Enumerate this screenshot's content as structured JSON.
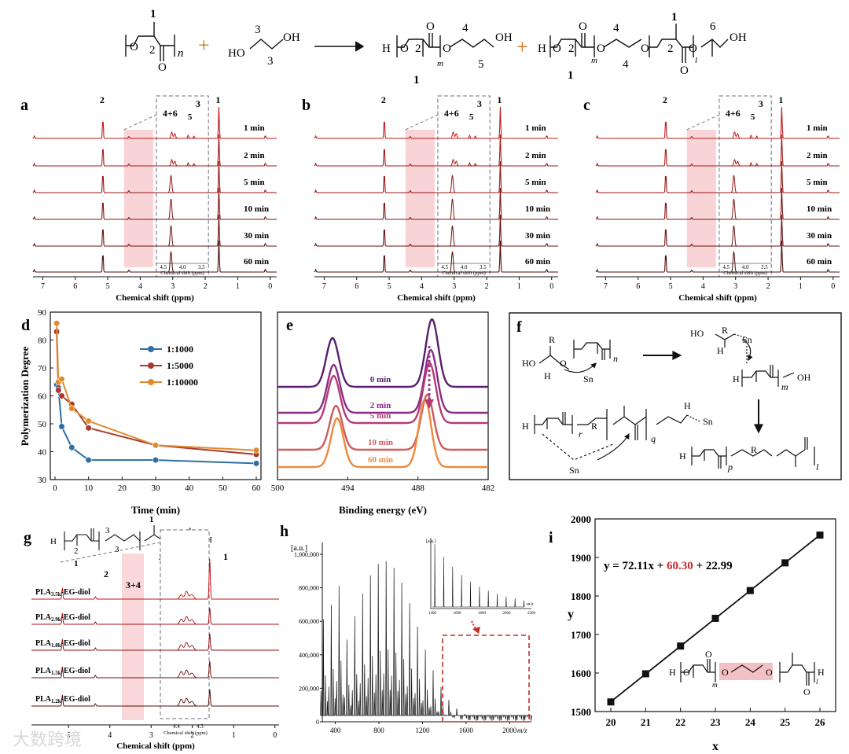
{
  "scheme": {
    "labels": {
      "n": "n",
      "m": "m",
      "l": "l",
      "H": "H",
      "HO": "HO",
      "OH": "OH",
      "plus": "+",
      "O": "O",
      "one": "1",
      "two": "2",
      "three": "3",
      "four": "4",
      "five": "5",
      "six": "6"
    }
  },
  "nmr_common": {
    "xlabel": "Chemical shift (ppm)",
    "xticks": [
      "7",
      "6",
      "5",
      "4",
      "3",
      "2",
      "1",
      "0"
    ],
    "inset_xlabel": "Chemical shift (ppm)",
    "inset_ticks": [
      "4.5",
      "4.0",
      "3.5"
    ],
    "times": [
      "1 min",
      "2 min",
      "5 min",
      "10 min",
      "30 min",
      "60 min"
    ]
  },
  "panels": [
    {
      "letter": "a",
      "inset_labels": [
        "4+6",
        "5",
        "3"
      ],
      "peak_labels": [
        "2",
        "1"
      ]
    },
    {
      "letter": "b",
      "inset_labels": [
        "4+6",
        "5",
        "3"
      ],
      "peak_labels": [
        "2",
        "1"
      ]
    },
    {
      "letter": "c",
      "inset_labels": [
        "4+6",
        "5",
        "3"
      ],
      "peak_labels": [
        "2",
        "1"
      ]
    }
  ],
  "panel_d": {
    "letter": "d",
    "chart_data": {
      "type": "line",
      "title": "",
      "xlabel": "Time (min)",
      "ylabel": "Polymerization Degree",
      "xlim": [
        0,
        60
      ],
      "ylim": [
        30,
        90
      ],
      "xticks": [
        "0",
        "10",
        "20",
        "30",
        "40",
        "50",
        "60"
      ],
      "yticks": [
        "30",
        "40",
        "50",
        "60",
        "70",
        "80",
        "90"
      ],
      "series": [
        {
          "name": "1:1000",
          "color": "#2f6fa3",
          "x": [
            0.5,
            1,
            2,
            5,
            10,
            30,
            60
          ],
          "y": [
            64,
            63,
            49,
            41.5,
            37,
            37,
            35.8
          ]
        },
        {
          "name": "1:5000",
          "color": "#a83a2e",
          "x": [
            0.5,
            1,
            2,
            5,
            10,
            30,
            60
          ],
          "y": [
            83,
            62,
            60,
            57,
            48.5,
            42.3,
            39
          ]
        },
        {
          "name": "1:10000",
          "color": "#e08a2e",
          "x": [
            0.5,
            1,
            2,
            5,
            10,
            30,
            60
          ],
          "y": [
            86,
            65,
            66,
            55.5,
            51,
            42.3,
            40.5
          ]
        }
      ]
    }
  },
  "panel_e": {
    "letter": "e",
    "xlabel": "Binding energy (eV)",
    "xticks": [
      "500",
      "494",
      "488",
      "482"
    ],
    "times": [
      "0 min",
      "2 min",
      "5 min",
      "10 min",
      "60 min"
    ],
    "colors": [
      "#5a1e6e",
      "#8a2b84",
      "#b53a78",
      "#cf5a5a",
      "#ec8a3c"
    ]
  },
  "panel_f": {
    "letter": "f",
    "labels": {
      "R": "R",
      "Sn": "Sn",
      "r": "r",
      "q": "q",
      "p": "p"
    }
  },
  "panel_g": {
    "letter": "g",
    "samples": [
      "PLA",
      "PLA",
      "PLA",
      "PLA",
      "PLA"
    ],
    "subs": [
      "3.5k",
      "2.9k",
      "1.8k",
      "1.5k",
      "1.2k"
    ],
    "suffix": "-EG-diol",
    "peak_labels": [
      "2",
      "3+4",
      "1"
    ],
    "xlabel": "Chemical shift (ppm)",
    "xticks": [
      "5",
      "4",
      "3",
      "2",
      "1",
      "0"
    ],
    "inset_ticks": [
      "4.4",
      "4.3"
    ],
    "inset_xlabel": "Chemical shift (ppm)"
  },
  "panel_h": {
    "letter": "h",
    "ylabel": "[a.u.]",
    "xlabel": "m/z",
    "yticks": [
      "0",
      "200,000",
      "400,000",
      "600,000",
      "800,000",
      "1,000,000"
    ],
    "xticks": [
      "400",
      "800",
      "1200",
      "1600",
      "2000"
    ],
    "inset_ylabel": "[a.u.]",
    "inset_xticks": [
      "1400",
      "1600",
      "1800",
      "2000",
      "2200"
    ],
    "inset_xlabel": "m/z"
  },
  "panel_i": {
    "letter": "i",
    "equation_parts": [
      "y = 72.11x + ",
      "60.30",
      " + 22.99"
    ],
    "chart_data": {
      "type": "scatter",
      "xlabel": "x",
      "ylabel": "y",
      "xlim": [
        20,
        26
      ],
      "ylim": [
        1500,
        2000
      ],
      "xticks": [
        "20",
        "21",
        "22",
        "23",
        "24",
        "25",
        "26"
      ],
      "yticks": [
        "1500",
        "1600",
        "1700",
        "1800",
        "1900",
        "2000"
      ],
      "x": [
        20,
        21,
        22,
        23,
        24,
        25,
        26
      ],
      "y": [
        1525,
        1598,
        1670,
        1742,
        1814,
        1886,
        1958
      ]
    }
  },
  "watermark": "大数跨境"
}
